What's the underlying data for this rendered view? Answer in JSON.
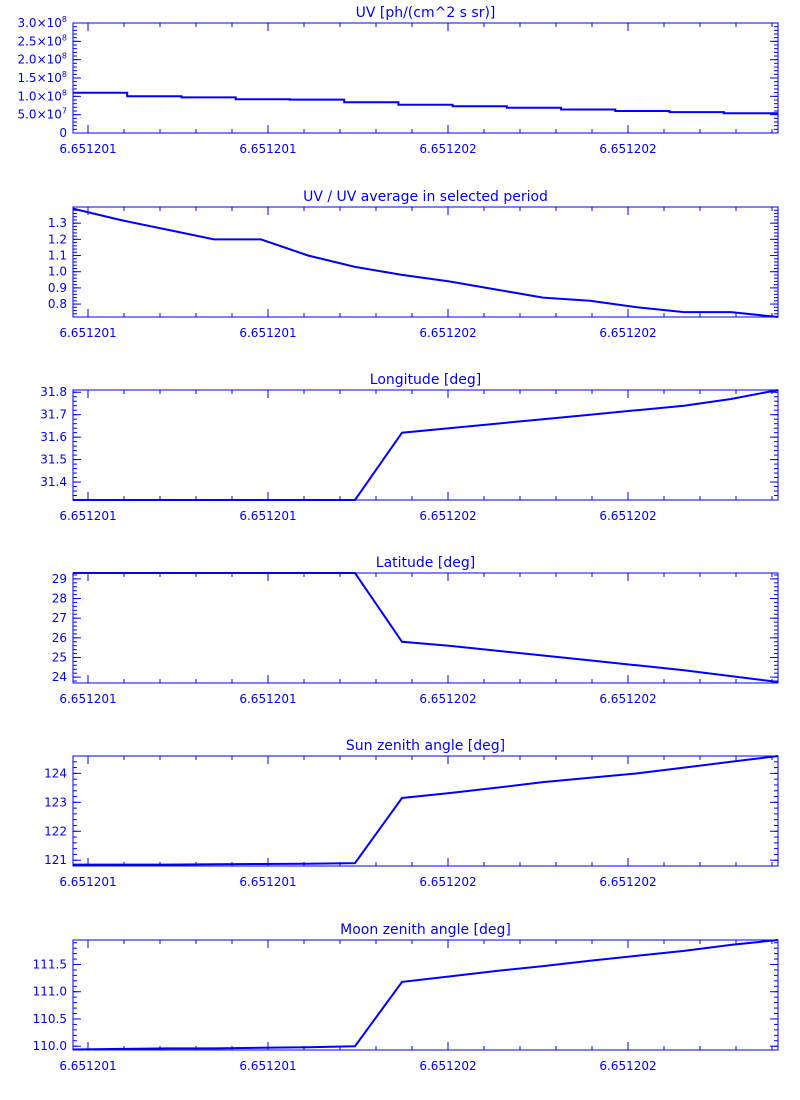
{
  "chart_data": [
    {
      "type": "line",
      "title": "UV [ph/(cm^2 s sr)]",
      "x_tick_labels": [
        "6.651201",
        "6.651201",
        "6.651202",
        "6.651202"
      ],
      "ylim": [
        0,
        300000000
      ],
      "y_ticks": [
        {
          "value": 0,
          "mantissa": "0",
          "exponent": ""
        },
        {
          "value": 50000000,
          "mantissa": "5.0×10",
          "exponent": "7"
        },
        {
          "value": 100000000,
          "mantissa": "1.0×10",
          "exponent": "8"
        },
        {
          "value": 150000000,
          "mantissa": "1.5×10",
          "exponent": "8"
        },
        {
          "value": 200000000,
          "mantissa": "2.0×10",
          "exponent": "8"
        },
        {
          "value": 250000000,
          "mantissa": "2.5×10",
          "exponent": "8"
        },
        {
          "value": 300000000,
          "mantissa": "3.0×10",
          "exponent": "8"
        }
      ],
      "step": true,
      "series": [
        {
          "values": [
            110000000,
            100000000,
            97000000,
            92000000,
            91000000,
            84000000,
            77000000,
            73000000,
            69000000,
            64000000,
            60000000,
            57000000,
            54000000
          ]
        }
      ],
      "color": "#0000ff"
    },
    {
      "type": "line",
      "title": "UV / UV average in selected period",
      "x_tick_labels": [
        "6.651201",
        "6.651201",
        "6.651202",
        "6.651202"
      ],
      "ylim": [
        0.72,
        1.4
      ],
      "y_ticks": [
        {
          "value": 0.8,
          "label": "0.8"
        },
        {
          "value": 0.9,
          "label": "0.9"
        },
        {
          "value": 1.0,
          "label": "1.0"
        },
        {
          "value": 1.1,
          "label": "1.1"
        },
        {
          "value": 1.2,
          "label": "1.2"
        },
        {
          "value": 1.3,
          "label": "1.3"
        }
      ],
      "series": [
        {
          "values": [
            1.39,
            1.32,
            1.26,
            1.2,
            1.2,
            1.1,
            1.03,
            0.98,
            0.94,
            0.89,
            0.84,
            0.82,
            0.78,
            0.75,
            0.75,
            0.72
          ]
        }
      ],
      "color": "#0000ff"
    },
    {
      "type": "line",
      "title": "Longitude [deg]",
      "x_tick_labels": [
        "6.651201",
        "6.651201",
        "6.651202",
        "6.651202"
      ],
      "ylim": [
        31.32,
        31.81
      ],
      "y_ticks": [
        {
          "value": 31.4,
          "label": "31.4"
        },
        {
          "value": 31.5,
          "label": "31.5"
        },
        {
          "value": 31.6,
          "label": "31.6"
        },
        {
          "value": 31.7,
          "label": "31.7"
        },
        {
          "value": 31.8,
          "label": "31.8"
        }
      ],
      "series": [
        {
          "values": [
            31.32,
            31.32,
            31.32,
            31.32,
            31.32,
            31.32,
            31.32,
            31.62,
            31.64,
            31.66,
            31.68,
            31.7,
            31.72,
            31.74,
            31.77,
            31.81
          ]
        }
      ],
      "color": "#0000ff"
    },
    {
      "type": "line",
      "title": "Latitude [deg]",
      "x_tick_labels": [
        "6.651201",
        "6.651201",
        "6.651202",
        "6.651202"
      ],
      "ylim": [
        23.7,
        29.3
      ],
      "y_ticks": [
        {
          "value": 24,
          "label": "24"
        },
        {
          "value": 25,
          "label": "25"
        },
        {
          "value": 26,
          "label": "26"
        },
        {
          "value": 27,
          "label": "27"
        },
        {
          "value": 28,
          "label": "28"
        },
        {
          "value": 29,
          "label": "29"
        }
      ],
      "series": [
        {
          "values": [
            29.3,
            29.3,
            29.3,
            29.3,
            29.3,
            29.3,
            29.3,
            25.8,
            25.6,
            25.35,
            25.1,
            24.85,
            24.6,
            24.35,
            24.05,
            23.75
          ]
        }
      ],
      "color": "#0000ff"
    },
    {
      "type": "line",
      "title": "Sun zenith angle [deg]",
      "x_tick_labels": [
        "6.651201",
        "6.651201",
        "6.651202",
        "6.651202"
      ],
      "ylim": [
        120.8,
        124.6
      ],
      "y_ticks": [
        {
          "value": 121,
          "label": "121"
        },
        {
          "value": 122,
          "label": "122"
        },
        {
          "value": 123,
          "label": "123"
        },
        {
          "value": 124,
          "label": "124"
        }
      ],
      "series": [
        {
          "values": [
            120.85,
            120.85,
            120.85,
            120.86,
            120.87,
            120.88,
            120.9,
            123.15,
            123.32,
            123.5,
            123.7,
            123.85,
            124.0,
            124.2,
            124.4,
            124.6
          ]
        }
      ],
      "color": "#0000ff"
    },
    {
      "type": "line",
      "title": "Moon zenith angle [deg]",
      "x_tick_labels": [
        "6.651201",
        "6.651201",
        "6.651202",
        "6.651202"
      ],
      "ylim": [
        109.93,
        111.95
      ],
      "y_ticks": [
        {
          "value": 110.0,
          "label": "110.0"
        },
        {
          "value": 110.5,
          "label": "110.5"
        },
        {
          "value": 111.0,
          "label": "111.0"
        },
        {
          "value": 111.5,
          "label": "111.5"
        }
      ],
      "series": [
        {
          "values": [
            109.94,
            109.95,
            109.96,
            109.96,
            109.97,
            109.98,
            110.0,
            111.18,
            111.28,
            111.38,
            111.47,
            111.57,
            111.66,
            111.75,
            111.86,
            111.95
          ]
        }
      ],
      "color": "#0000ff"
    }
  ]
}
